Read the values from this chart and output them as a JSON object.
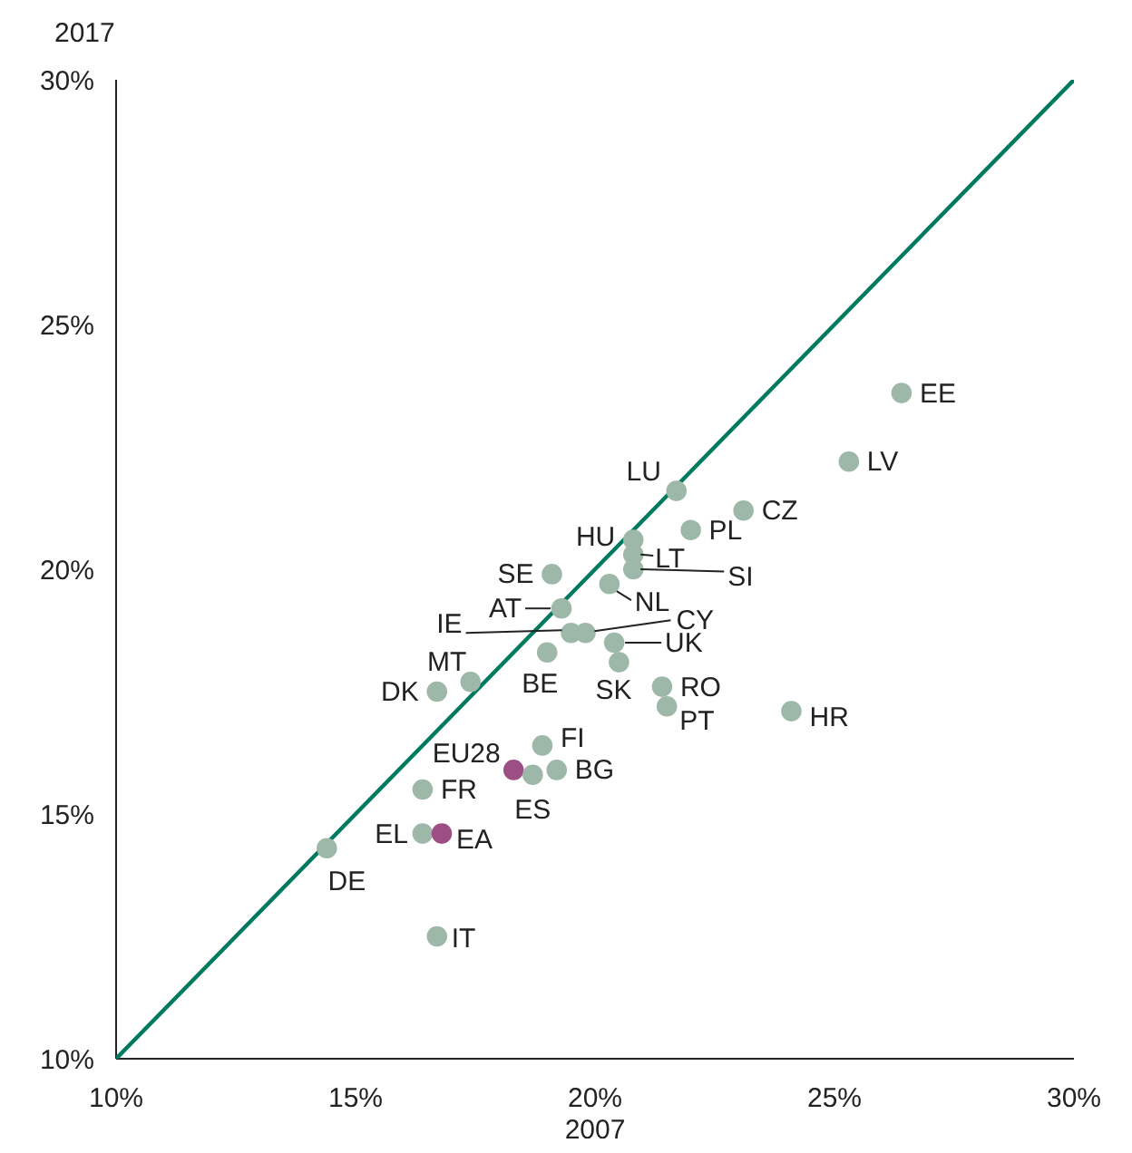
{
  "chart_data": {
    "type": "scatter",
    "xlabel": "2007",
    "ylabel": "2017",
    "xlim": [
      10,
      30
    ],
    "ylim": [
      10,
      30
    ],
    "xticks": [
      {
        "value": 10,
        "label": "10%"
      },
      {
        "value": 15,
        "label": "15%"
      },
      {
        "value": 20,
        "label": "20%"
      },
      {
        "value": 25,
        "label": "25%"
      },
      {
        "value": 30,
        "label": "30%"
      }
    ],
    "yticks": [
      {
        "value": 10,
        "label": "10%"
      },
      {
        "value": 15,
        "label": "15%"
      },
      {
        "value": 20,
        "label": "20%"
      },
      {
        "value": 25,
        "label": "25%"
      },
      {
        "value": 30,
        "label": "30%"
      }
    ],
    "grid": false,
    "legend": false,
    "marker": "circle",
    "series": [
      {
        "type": "line",
        "color": "#007a5e",
        "x": [
          10,
          30
        ],
        "values": [
          10,
          30
        ],
        "marker": "none",
        "line_style": "solid"
      },
      {
        "name": "EE",
        "color": "#9db8a8",
        "x": [
          26.4
        ],
        "values": [
          23.6
        ]
      },
      {
        "name": "LV",
        "color": "#9db8a8",
        "x": [
          25.3
        ],
        "values": [
          22.2
        ]
      },
      {
        "name": "CZ",
        "color": "#9db8a8",
        "x": [
          23.1
        ],
        "values": [
          21.2
        ]
      },
      {
        "name": "LU",
        "color": "#9db8a8",
        "x": [
          21.7
        ],
        "values": [
          21.6
        ]
      },
      {
        "name": "PL",
        "color": "#9db8a8",
        "x": [
          22.0
        ],
        "values": [
          20.8
        ]
      },
      {
        "name": "HU",
        "color": "#9db8a8",
        "x": [
          20.8
        ],
        "values": [
          20.6
        ]
      },
      {
        "name": "LT",
        "color": "#9db8a8",
        "x": [
          20.8
        ],
        "values": [
          20.3
        ]
      },
      {
        "name": "SI",
        "color": "#9db8a8",
        "x": [
          20.8
        ],
        "values": [
          20.0
        ]
      },
      {
        "name": "NL",
        "color": "#9db8a8",
        "x": [
          20.3
        ],
        "values": [
          19.7
        ]
      },
      {
        "name": "SE",
        "color": "#9db8a8",
        "x": [
          19.1
        ],
        "values": [
          19.9
        ]
      },
      {
        "name": "AT",
        "color": "#9db8a8",
        "x": [
          19.3
        ],
        "values": [
          19.2
        ]
      },
      {
        "name": "IE",
        "color": "#9db8a8",
        "x": [
          19.5
        ],
        "values": [
          18.7
        ]
      },
      {
        "name": "CY",
        "color": "#9db8a8",
        "x": [
          19.8
        ],
        "values": [
          18.7
        ]
      },
      {
        "name": "UK",
        "color": "#9db8a8",
        "x": [
          20.4
        ],
        "values": [
          18.5
        ]
      },
      {
        "name": "SK",
        "color": "#9db8a8",
        "x": [
          20.5
        ],
        "values": [
          18.1
        ]
      },
      {
        "name": "BE",
        "color": "#9db8a8",
        "x": [
          19.0
        ],
        "values": [
          18.3
        ]
      },
      {
        "name": "MT",
        "color": "#9db8a8",
        "x": [
          17.4
        ],
        "values": [
          17.7
        ]
      },
      {
        "name": "DK",
        "color": "#9db8a8",
        "x": [
          16.7
        ],
        "values": [
          17.5
        ]
      },
      {
        "name": "RO",
        "color": "#9db8a8",
        "x": [
          21.4
        ],
        "values": [
          17.6
        ]
      },
      {
        "name": "PT",
        "color": "#9db8a8",
        "x": [
          21.5
        ],
        "values": [
          17.2
        ]
      },
      {
        "name": "HR",
        "color": "#9db8a8",
        "x": [
          24.1
        ],
        "values": [
          17.1
        ]
      },
      {
        "name": "FI",
        "color": "#9db8a8",
        "x": [
          18.9
        ],
        "values": [
          16.4
        ]
      },
      {
        "name": "EU28",
        "color": "#9b4f85",
        "x": [
          18.3
        ],
        "values": [
          15.9
        ]
      },
      {
        "name": "ES",
        "color": "#9db8a8",
        "x": [
          18.7
        ],
        "values": [
          15.8
        ]
      },
      {
        "name": "BG",
        "color": "#9db8a8",
        "x": [
          19.2
        ],
        "values": [
          15.9
        ]
      },
      {
        "name": "FR",
        "color": "#9db8a8",
        "x": [
          16.4
        ],
        "values": [
          15.5
        ]
      },
      {
        "name": "EL",
        "color": "#9db8a8",
        "x": [
          16.4
        ],
        "values": [
          14.6
        ]
      },
      {
        "name": "EA",
        "color": "#9b4f85",
        "x": [
          16.8
        ],
        "values": [
          14.6
        ]
      },
      {
        "name": "DE",
        "color": "#9db8a8",
        "x": [
          14.4
        ],
        "values": [
          14.3
        ]
      },
      {
        "name": "IT",
        "color": "#9db8a8",
        "x": [
          16.7
        ],
        "values": [
          12.5
        ]
      }
    ]
  }
}
